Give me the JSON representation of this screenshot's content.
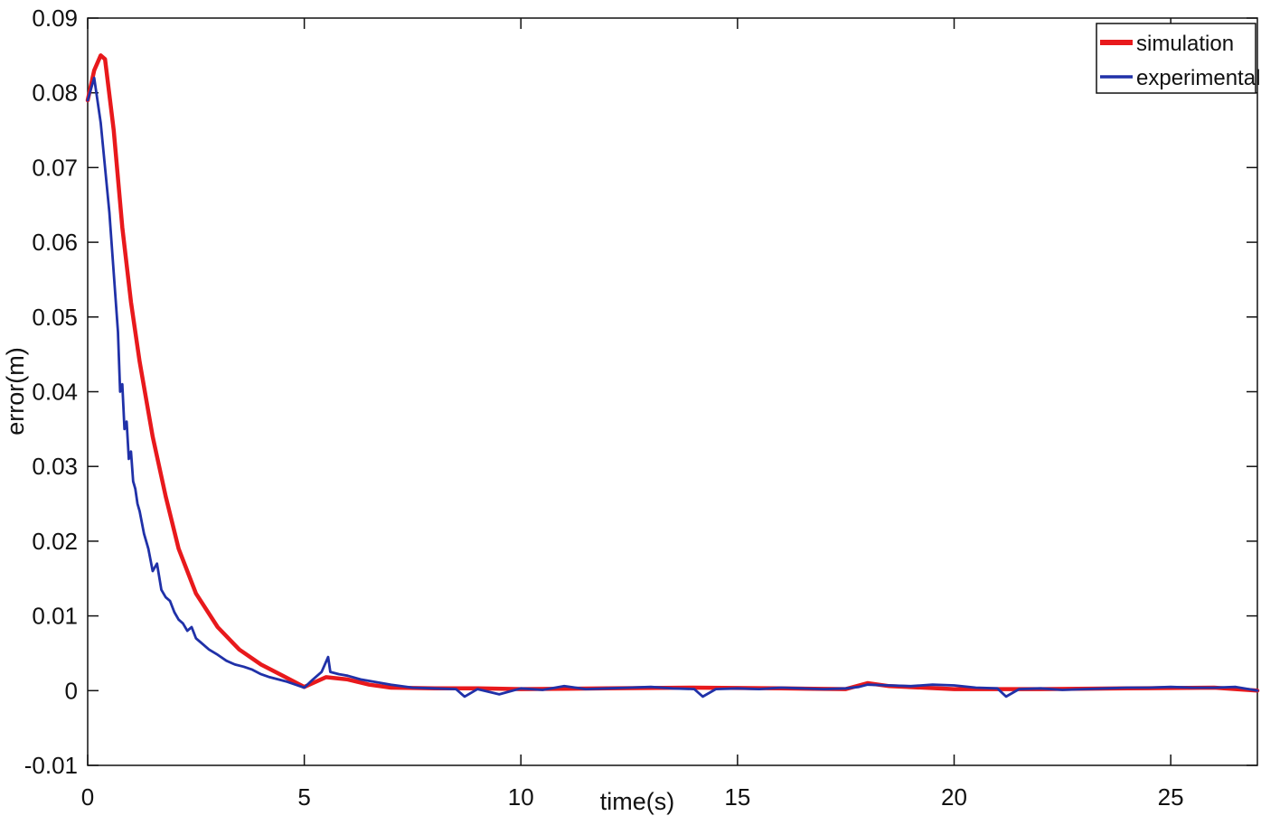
{
  "chart_data": {
    "type": "line",
    "xlabel": "time(s)",
    "ylabel": "error(m)",
    "xlim": [
      0,
      27
    ],
    "ylim": [
      -0.01,
      0.09
    ],
    "xticks": [
      0,
      5,
      10,
      15,
      20,
      25
    ],
    "xtick_labels": [
      "0",
      "5",
      "10",
      "15",
      "20",
      "25"
    ],
    "yticks": [
      -0.01,
      0,
      0.01,
      0.02,
      0.03,
      0.04,
      0.05,
      0.06,
      0.07,
      0.08,
      0.09
    ],
    "ytick_labels": [
      "-0.01",
      "0",
      "0.01",
      "0.02",
      "0.03",
      "0.04",
      "0.05",
      "0.06",
      "0.07",
      "0.08",
      "0.09"
    ],
    "grid": false,
    "legend_position": "top-right",
    "series": [
      {
        "name": "simulation",
        "color": "#e8191c",
        "x": [
          0,
          0.15,
          0.3,
          0.4,
          0.6,
          0.8,
          1.0,
          1.2,
          1.5,
          1.8,
          2.1,
          2.5,
          3.0,
          3.5,
          4.0,
          4.5,
          5.0,
          5.5,
          6.0,
          6.5,
          7.0,
          8.0,
          9.0,
          10.0,
          12.0,
          14.0,
          16.0,
          17.5,
          18.0,
          18.5,
          20.0,
          22.0,
          24.0,
          26.0,
          27.0
        ],
        "y": [
          0.079,
          0.083,
          0.085,
          0.0845,
          0.075,
          0.062,
          0.052,
          0.044,
          0.034,
          0.026,
          0.019,
          0.013,
          0.0085,
          0.0055,
          0.0035,
          0.002,
          0.0005,
          0.0018,
          0.0015,
          0.0008,
          0.0004,
          0.0003,
          0.0003,
          0.0002,
          0.0003,
          0.0004,
          0.0003,
          0.0002,
          0.001,
          0.0006,
          0.0002,
          0.0002,
          0.0003,
          0.0004,
          0.0
        ]
      },
      {
        "name": "experimental",
        "color": "#2031a8",
        "x": [
          0,
          0.15,
          0.3,
          0.5,
          0.7,
          0.75,
          0.8,
          0.85,
          0.9,
          0.95,
          1.0,
          1.05,
          1.1,
          1.15,
          1.2,
          1.25,
          1.3,
          1.4,
          1.5,
          1.6,
          1.7,
          1.8,
          1.9,
          2.0,
          2.1,
          2.2,
          2.3,
          2.4,
          2.5,
          2.6,
          2.8,
          3.0,
          3.2,
          3.4,
          3.6,
          3.8,
          4.0,
          4.2,
          4.4,
          4.6,
          4.8,
          5.0,
          5.2,
          5.4,
          5.55,
          5.6,
          5.8,
          6.0,
          6.3,
          6.6,
          7.0,
          7.5,
          8.0,
          8.5,
          8.7,
          9.0,
          9.5,
          10.0,
          10.5,
          11.0,
          11.5,
          12.0,
          12.5,
          13.0,
          13.5,
          14.0,
          14.2,
          14.5,
          15.0,
          15.5,
          16.0,
          16.5,
          17.0,
          17.5,
          17.8,
          18.0,
          18.5,
          19.0,
          19.5,
          20.0,
          20.5,
          21.0,
          21.2,
          21.5,
          22.0,
          22.5,
          23.0,
          23.5,
          24.0,
          24.5,
          25.0,
          25.5,
          26.0,
          26.5,
          27.0
        ],
        "y": [
          0.079,
          0.082,
          0.076,
          0.064,
          0.048,
          0.04,
          0.041,
          0.035,
          0.036,
          0.031,
          0.032,
          0.028,
          0.027,
          0.025,
          0.024,
          0.0225,
          0.021,
          0.019,
          0.016,
          0.017,
          0.0135,
          0.0125,
          0.012,
          0.0105,
          0.0095,
          0.009,
          0.008,
          0.0085,
          0.007,
          0.0065,
          0.0055,
          0.0048,
          0.004,
          0.0035,
          0.0032,
          0.0028,
          0.0022,
          0.0018,
          0.0015,
          0.0012,
          0.0008,
          0.0004,
          0.0015,
          0.0025,
          0.0045,
          0.0025,
          0.0022,
          0.002,
          0.0015,
          0.0012,
          0.0008,
          0.0004,
          0.0003,
          0.0002,
          -0.0008,
          0.0002,
          -0.0005,
          0.0003,
          0.0001,
          0.0006,
          0.0002,
          0.0003,
          0.0004,
          0.0005,
          0.0003,
          0.0002,
          -0.0008,
          0.0002,
          0.0003,
          0.0002,
          0.0004,
          0.0003,
          0.0002,
          0.0003,
          0.0005,
          0.0008,
          0.0007,
          0.0006,
          0.0008,
          0.0007,
          0.0004,
          0.0003,
          -0.0008,
          0.0002,
          0.0003,
          0.0001,
          0.0002,
          0.0003,
          0.0004,
          0.0004,
          0.0005,
          0.0004,
          0.0004,
          0.0005,
          0.0
        ]
      }
    ]
  }
}
